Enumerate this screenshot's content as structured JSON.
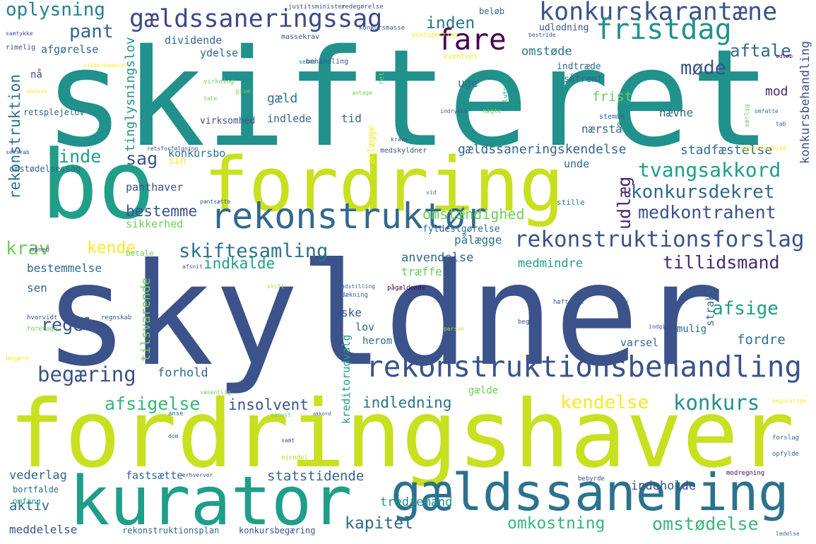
{
  "words": [
    "skifteret",
    "skyldner",
    "fordringshaver",
    "fordring",
    "bo",
    "kurator",
    "gældssanering",
    "rekonstruktionsbehandling",
    "rekonstruktionsforslag",
    "rekonstruktør",
    "konkurskarantæne",
    "fristdag",
    "fare",
    "gældssaneringssag",
    "oplysning",
    "skiftesamling",
    "tvangsakkord",
    "konkursdekret",
    "medkontrahent",
    "udlæg",
    "tillidsmand",
    "begæring",
    "afsigelse",
    "konkurs",
    "kendelse",
    "kapitel",
    "omkostning",
    "omstødelse",
    "indledning",
    "insolvent",
    "krav",
    "kende",
    "indkalde",
    "afsige",
    "regel",
    "fordre",
    "sag",
    "finde",
    "pant",
    "aftale",
    "møde",
    "omstøde",
    "inden",
    "konkursbo",
    "bestemme",
    "gæld",
    "tid",
    "uge",
    "frist",
    "mod",
    "nævne",
    "nærstå",
    "stadfæstelse",
    "unde",
    "omstændighed",
    "fyldestgørelse",
    "pålægge",
    "anvendelse",
    "medmindre",
    "træffe",
    "sen",
    "bestemmelse",
    "lov",
    "ske",
    "herom",
    "varsel",
    "mulig",
    "forhold",
    "gælde",
    "fastsætte",
    "statstidende",
    "indeholde",
    "vederlag",
    "aktiv",
    "tredjemand",
    "meddelelse",
    "bortfalde",
    "omfang",
    "rekonstruktionsplan",
    "konkursbegæring",
    "panthaver",
    "sikkerhed",
    "omstødelsessag",
    "retsplejelov",
    "nå",
    "afgørelse",
    "rimelig",
    "dividende",
    "ydelse",
    "virksomhed",
    "indlede",
    "konkursmasse",
    "massekrav",
    "behandling",
    "beløb",
    "udlodning",
    "indtræde",
    "såfremt",
    "eventuel",
    "gældssaneringskendelse",
    "medskyldner",
    "stille",
    "sin",
    "kreditorudvalg",
    "tinglysningslov",
    "rekonstruktion",
    "anlægge",
    "konkursbehandling",
    "straks",
    "tilsvarende",
    "justitsminister",
    "redegørelse",
    "samtykke",
    "virkning",
    "give",
    "sende",
    "tale",
    "antage",
    "stemme",
    "indgive",
    "person",
    "akkord",
    "senest",
    "betale",
    "måned",
    "hvorvidt",
    "foretage",
    "regnskab",
    "begære",
    "væsentlig",
    "forslag",
    "opfylde",
    "begunstige",
    "bebyrde",
    "modregning",
    "ledelse",
    "pantsætte",
    "vid",
    "stift",
    "hav",
    "begær",
    "hæftelse",
    "indstilling",
    "pågældende",
    "ejendel",
    "samt",
    "dom",
    "anse",
    "afsnit",
    "dækning",
    "erhverver",
    "selskab",
    "retsforfølgning",
    "panteforhold",
    "krave",
    "slutning",
    "nægte",
    "ret",
    "indrykke",
    "udløb",
    "tab",
    "særlig",
    "omfatte",
    "bestride",
    "postspærring",
    "sikkerhedsret",
    "hensyn"
  ]
}
